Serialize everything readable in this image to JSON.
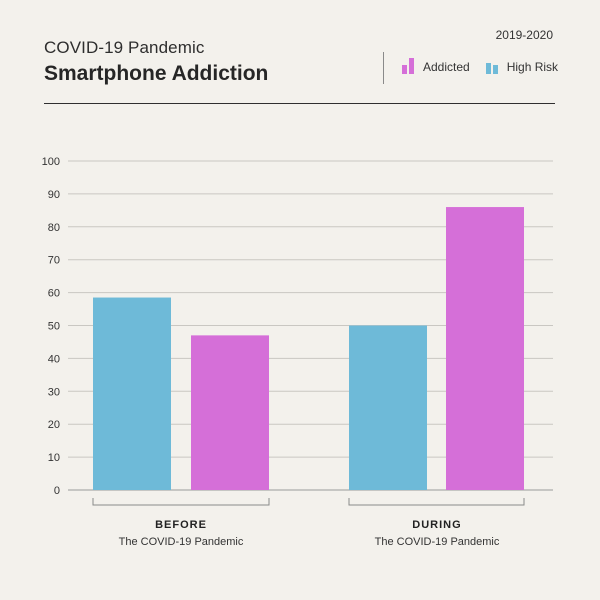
{
  "header": {
    "subtitle": "COVID-19 Pandemic",
    "title": "Smartphone Addiction",
    "date_range": "2019-2020"
  },
  "legend": [
    {
      "label": "Addicted",
      "color": "#d56fd8",
      "icon": "bar-chart-icon"
    },
    {
      "label": "High Risk",
      "color": "#6ebad8",
      "icon": "bar-chart-icon"
    }
  ],
  "chart_data": {
    "type": "bar",
    "categories": [
      "BEFORE",
      "DURING"
    ],
    "category_sublabels": [
      "The COVID-19 Pandemic",
      "The COVID-19 Pandemic"
    ],
    "series": [
      {
        "name": "High Risk",
        "color": "#6ebad8",
        "values": [
          58.5,
          50
        ]
      },
      {
        "name": "Addicted",
        "color": "#d56fd8",
        "values": [
          47,
          86
        ]
      }
    ],
    "ylim": [
      0,
      100
    ],
    "yticks": [
      0,
      10,
      20,
      30,
      40,
      50,
      60,
      70,
      80,
      90,
      100
    ],
    "grid": true,
    "title": "Smartphone Addiction",
    "xlabel": "",
    "ylabel": ""
  }
}
